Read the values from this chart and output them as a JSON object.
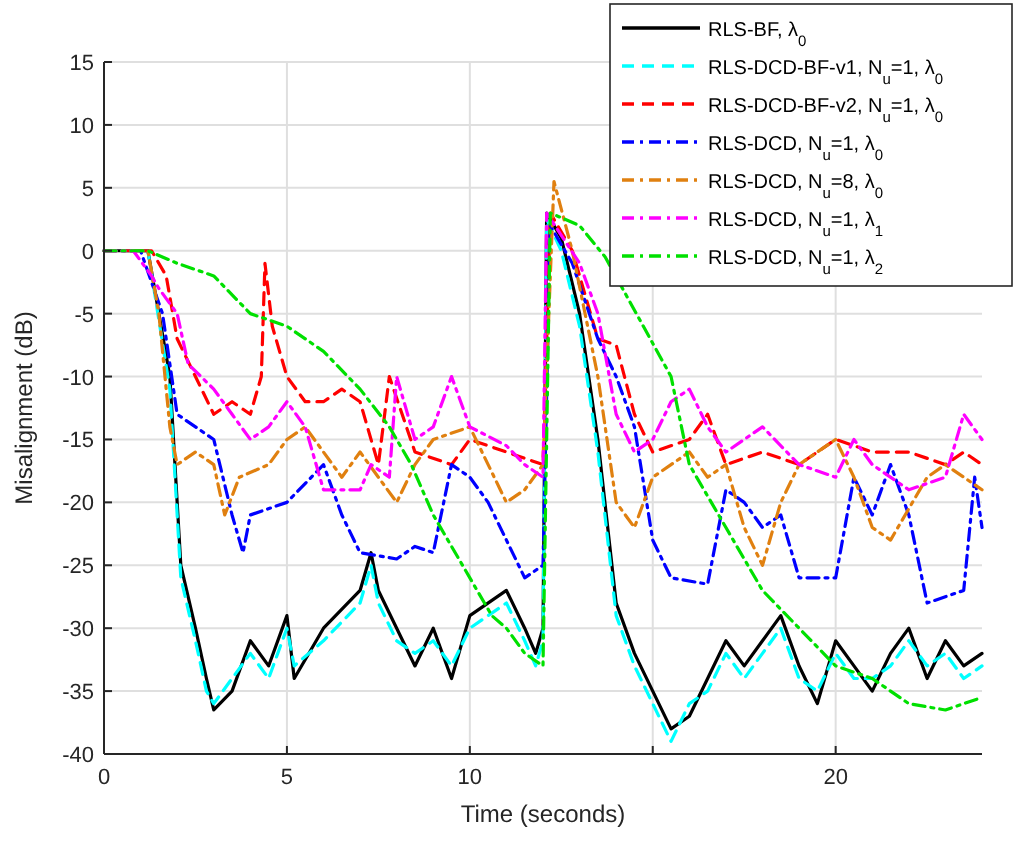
{
  "chart_data": {
    "type": "line",
    "xlabel": "Time (seconds)",
    "ylabel": "Misalignment (dB)",
    "xlim": [
      0,
      24
    ],
    "ylim": [
      -40,
      15
    ],
    "xticks": [
      0,
      5,
      10,
      {
        "value": 15,
        "label": null
      },
      20
    ],
    "yticks": [
      -40,
      -35,
      -30,
      -25,
      -20,
      -15,
      -10,
      -5,
      0,
      5,
      10,
      15
    ],
    "grid": true,
    "legend": "top right",
    "marker": "none",
    "series": [
      {
        "name": "RLS-BF, λ$_{0}$",
        "color": "#000000",
        "line_style": "solid",
        "x": [
          0,
          1.2,
          1.8,
          2.1,
          2.5,
          2.8,
          3,
          3.5,
          4,
          4.5,
          5,
          5.2,
          6,
          7,
          7.3,
          7.5,
          8,
          8.5,
          9,
          9.5,
          10,
          11,
          11.5,
          11.8,
          12,
          12.1,
          12.5,
          13,
          13.5,
          14,
          14.5,
          15,
          15.5,
          16,
          16.5,
          17,
          17.5,
          18,
          18.5,
          19,
          19.5,
          20,
          20.5,
          21,
          21.5,
          22,
          22.5,
          23,
          23.5,
          24
        ],
        "values": [
          0,
          0,
          -10,
          -25,
          -30,
          -34,
          -36.5,
          -35,
          -31,
          -33,
          -29,
          -34,
          -30,
          -27,
          -24,
          -27,
          -30,
          -33,
          -30,
          -34,
          -29,
          -27,
          -30,
          -32,
          -30,
          3,
          1,
          -5,
          -15,
          -28,
          -32,
          -35,
          -38,
          -37,
          -34,
          -31,
          -33,
          -31,
          -29,
          -33,
          -36,
          -31,
          -33,
          -35,
          -32,
          -30,
          -34,
          -31,
          -33,
          -32
        ]
      },
      {
        "name": "RLS-DCD-BF-v1, N$_{u}$=1, λ$_{0}$",
        "color": "#00ffff",
        "line_style": "dashed",
        "x": [
          0,
          1.2,
          1.8,
          2.1,
          2.5,
          2.8,
          3,
          3.5,
          4,
          4.5,
          5,
          5.2,
          6,
          7,
          7.3,
          7.5,
          8,
          8.5,
          9,
          9.5,
          10,
          11,
          11.5,
          11.8,
          12,
          12.1,
          12.5,
          13,
          13.5,
          14,
          14.5,
          15,
          15.5,
          16,
          16.5,
          17,
          17.5,
          18,
          18.5,
          19,
          19.5,
          20,
          20.5,
          21,
          21.5,
          22,
          22.5,
          23,
          23.5,
          24
        ],
        "values": [
          0,
          0,
          -11,
          -26,
          -31,
          -35,
          -36,
          -34,
          -32,
          -34,
          -30,
          -33,
          -31,
          -28,
          -25,
          -28,
          -31,
          -32,
          -31,
          -33,
          -30,
          -28,
          -31,
          -33,
          -31,
          2.5,
          0,
          -6,
          -16,
          -29,
          -33,
          -36,
          -39,
          -36,
          -35,
          -32,
          -34,
          -32,
          -30,
          -34,
          -35,
          -32,
          -34,
          -34,
          -33,
          -31,
          -33,
          -32,
          -34,
          -33
        ]
      },
      {
        "name": "RLS-DCD-BF-v2, N$_{u}$=1, λ$_{0}$",
        "color": "#ff0000",
        "line_style": "dashed",
        "x": [
          0,
          1.3,
          1.7,
          2,
          2.5,
          3,
          3.5,
          4,
          4.3,
          4.4,
          4.6,
          5,
          5.5,
          6,
          6.5,
          7,
          7.5,
          7.8,
          8.5,
          9.5,
          10,
          11,
          12,
          12.2,
          12.8,
          13.5,
          14,
          14.5,
          15,
          16,
          16.5,
          17,
          18,
          19,
          20,
          21,
          22,
          23,
          23.5,
          24
        ],
        "values": [
          0,
          0,
          -2,
          -7,
          -10,
          -13,
          -12,
          -13,
          -10,
          -1,
          -6,
          -10,
          -12,
          -12,
          -11,
          -12,
          -17,
          -10,
          -16,
          -17,
          -15,
          -16,
          -17,
          3,
          0,
          -7,
          -7.5,
          -13,
          -16,
          -15,
          -13,
          -17,
          -16,
          -17,
          -15,
          -16,
          -16,
          -17,
          -16,
          -17
        ]
      },
      {
        "name": "RLS-DCD, N$_{u}$=1, λ$_{0}$",
        "color": "#0000ff",
        "line_style": "dashdot",
        "x": [
          0,
          1,
          1.6,
          2,
          2.5,
          3,
          3.5,
          3.8,
          4,
          5,
          6,
          6.5,
          7,
          8,
          8.5,
          9,
          9.5,
          10,
          10.5,
          11,
          11.5,
          12,
          12.2,
          12.8,
          13.5,
          14,
          14.5,
          15,
          15.5,
          16.5,
          17,
          17.5,
          18,
          18.5,
          19,
          20,
          20.5,
          21,
          21.5,
          22,
          22.5,
          23.5,
          23.8,
          24
        ],
        "values": [
          0,
          0,
          -5,
          -13,
          -14,
          -15,
          -21,
          -24,
          -21,
          -20,
          -17,
          -21,
          -24,
          -24.5,
          -23.5,
          -24,
          -17,
          -18,
          -20,
          -23,
          -26,
          -25,
          2,
          -1,
          -7,
          -10,
          -14,
          -23,
          -26,
          -26.5,
          -19,
          -20,
          -22,
          -21,
          -26,
          -26,
          -18,
          -21,
          -17,
          -21,
          -28,
          -27,
          -18,
          -22
        ]
      },
      {
        "name": "RLS-DCD, N$_{u}$=8, λ$_{0}$",
        "color": "#e08010",
        "line_style": "dashdot",
        "x": [
          0,
          1.2,
          1.5,
          1.8,
          2,
          2.5,
          3,
          3.3,
          3.7,
          4.5,
          5,
          5.5,
          6.5,
          7,
          8,
          8.5,
          9,
          10,
          10.5,
          11,
          11.5,
          12,
          12.3,
          12.8,
          13.5,
          14,
          14.5,
          15,
          15.5,
          16,
          16.5,
          17,
          17.5,
          18,
          18.5,
          19,
          20,
          20.5,
          21,
          21.5,
          22.5,
          23,
          24
        ],
        "values": [
          0,
          0,
          -5,
          -14,
          -17,
          -16,
          -17,
          -21,
          -18,
          -17,
          -15,
          -14,
          -18,
          -16,
          -20,
          -17,
          -15,
          -14,
          -17,
          -20,
          -19,
          -17,
          5.5,
          0,
          -10,
          -20,
          -22,
          -18,
          -17,
          -16,
          -18,
          -17,
          -22,
          -25,
          -20,
          -17,
          -15,
          -18,
          -22,
          -23,
          -18,
          -17,
          -19
        ]
      },
      {
        "name": "RLS-DCD, N$_{u}$=1, λ$_{1}$",
        "color": "#ff00ff",
        "line_style": "dashdot",
        "x": [
          0,
          0.8,
          1.3,
          1.5,
          2,
          2.3,
          3,
          3.5,
          4,
          4.5,
          5,
          5.5,
          6,
          7,
          7.3,
          7.8,
          8,
          8.5,
          9,
          9.5,
          10,
          11,
          11.5,
          12,
          12.1,
          13,
          13.5,
          14,
          14.5,
          15,
          15.5,
          16,
          16.5,
          17,
          18,
          19,
          20,
          20.5,
          21,
          22,
          23,
          23.5,
          24
        ],
        "values": [
          0,
          0,
          -2,
          -3,
          -5,
          -9,
          -11,
          -13,
          -15,
          -14,
          -12,
          -14,
          -19,
          -19,
          -17,
          -18,
          -10,
          -15,
          -14,
          -10,
          -14,
          -15.5,
          -17,
          -18,
          3,
          -1,
          -5,
          -13,
          -16,
          -15,
          -12,
          -11,
          -14,
          -16,
          -14,
          -17,
          -18,
          -15,
          -17,
          -19,
          -18,
          -13,
          -15
        ]
      },
      {
        "name": "RLS-DCD, N$_{u}$=1, λ$_{2}$",
        "color": "#00e000",
        "line_style": "dashdot",
        "x": [
          0,
          1.2,
          2,
          3,
          4,
          5,
          6,
          7,
          7.8,
          8.4,
          9,
          9.8,
          10.6,
          11,
          11.5,
          12,
          12.2,
          13,
          13.7,
          15.5,
          16,
          17,
          18,
          19,
          20,
          21,
          22,
          23,
          24
        ],
        "values": [
          0,
          0,
          -1,
          -2,
          -5,
          -6,
          -8,
          -11,
          -14,
          -17,
          -21,
          -25,
          -29,
          -30,
          -32,
          -33,
          3,
          2,
          -0.5,
          -10,
          -17,
          -22,
          -27,
          -30,
          -33,
          -34,
          -36,
          -36.5,
          -35.5
        ]
      }
    ]
  }
}
